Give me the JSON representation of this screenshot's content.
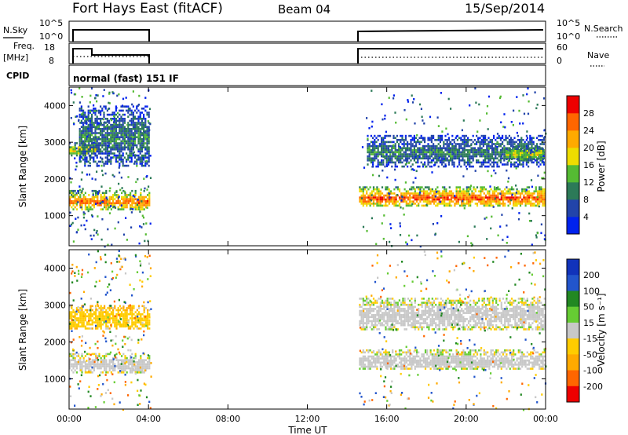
{
  "header": {
    "title": "Fort Hays East (fitACF)",
    "beam": "Beam 04",
    "date": "15/Sep/2014"
  },
  "panels": {
    "nsky_label": "N.Sky",
    "nsearch_label": "N.Search",
    "noise_ticks_left": [
      "10^5",
      "10^0"
    ],
    "noise_ticks_right": [
      "10^5",
      "10^0"
    ],
    "freq_label": "Freq.",
    "freq_unit": "[MHz]",
    "freq_ticks": [
      "18",
      "8"
    ],
    "nave_label": "Nave",
    "nave_ticks": [
      "60",
      "0"
    ],
    "cpid_label": "CPID",
    "cpid_value": "normal (fast) 151 IF"
  },
  "chart_data": [
    {
      "type": "heatmap",
      "name": "power",
      "ylabel": "Slant Range [km]",
      "yticks": [
        1000,
        2000,
        3000,
        4000
      ],
      "ylim": [
        180,
        4500
      ],
      "xlim": [
        0,
        24
      ],
      "colorbar": {
        "label": "Power [dB]",
        "ticks": [
          "4",
          "8",
          "12",
          "16",
          "20",
          "24",
          "28"
        ],
        "colors": [
          "#0022ee",
          "#2244aa",
          "#2c7a58",
          "#55bb33",
          "#eedd00",
          "#ffaa00",
          "#ff6600",
          "#ee0000"
        ]
      },
      "data_intervals_ut": [
        [
          0,
          4.1
        ],
        [
          14.6,
          24
        ]
      ],
      "echo_bands": [
        {
          "t": [
            0,
            4.1
          ],
          "range_km": [
            1100,
            1700
          ],
          "power_db": 26
        },
        {
          "t": [
            0,
            1.5
          ],
          "range_km": [
            2600,
            3000
          ],
          "power_db": 20
        },
        {
          "t": [
            0.5,
            4.1
          ],
          "range_km": [
            2300,
            4000
          ],
          "power_db": 10
        },
        {
          "t": [
            14.6,
            24
          ],
          "range_km": [
            1200,
            1800
          ],
          "power_db": 28
        },
        {
          "t": [
            15,
            24
          ],
          "range_km": [
            2300,
            3200
          ],
          "power_db": 10
        },
        {
          "t": [
            22,
            24
          ],
          "range_km": [
            2500,
            2900
          ],
          "power_db": 18
        }
      ]
    },
    {
      "type": "heatmap",
      "name": "velocity",
      "ylabel": "Slant Range [km]",
      "xlabel": "Time UT",
      "xticks": [
        "00:00",
        "04:00",
        "08:00",
        "12:00",
        "16:00",
        "20:00",
        "00:00"
      ],
      "yticks": [
        1000,
        2000,
        3000,
        4000
      ],
      "ylim": [
        180,
        4500
      ],
      "xlim": [
        0,
        24
      ],
      "colorbar": {
        "label": "Velocity [m s⁻¹]",
        "ticks": [
          "200",
          "100",
          "50",
          "15",
          "-15",
          "-50",
          "-100",
          "-200"
        ],
        "colors": [
          "#1133bb",
          "#2255cc",
          "#228822",
          "#66cc33",
          "#c8c8c8",
          "#ffcc00",
          "#ffaa00",
          "#ff6600",
          "#ee0000"
        ]
      },
      "data_intervals_ut": [
        [
          0,
          4.1
        ],
        [
          14.6,
          24
        ]
      ],
      "echo_bands": [
        {
          "t": [
            0,
            4.1
          ],
          "range_km": [
            1100,
            1700
          ],
          "velocity_ms": 0
        },
        {
          "t": [
            0,
            4.1
          ],
          "range_km": [
            2300,
            3000
          ],
          "velocity_ms": -40
        },
        {
          "t": [
            14.6,
            24
          ],
          "range_km": [
            1200,
            1800
          ],
          "velocity_ms": 0
        },
        {
          "t": [
            14.6,
            24
          ],
          "range_km": [
            2300,
            3200
          ],
          "velocity_ms": 0
        }
      ]
    }
  ]
}
